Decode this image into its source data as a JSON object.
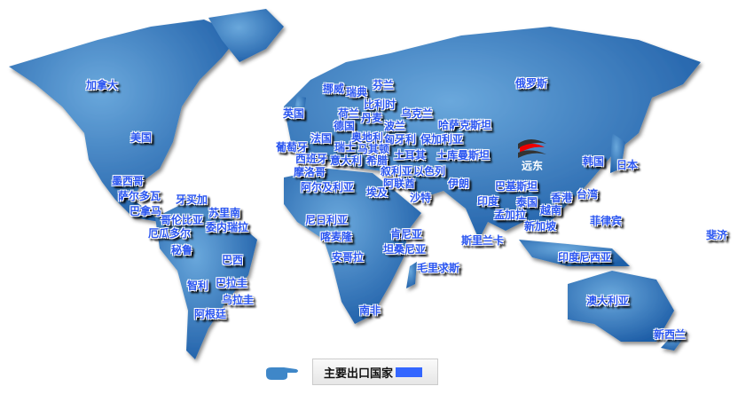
{
  "logo": {
    "text": "远东"
  },
  "legend": {
    "label": "主要出口国家",
    "swatch_color": "#3366ff",
    "pointer_icon": "hand-pointer-icon"
  },
  "colors": {
    "land": "#3d7fc4",
    "label": "#2a55f0"
  },
  "countries": [
    "加拿大",
    "美国",
    "墨西哥",
    "萨尔多瓦",
    "巴拿马",
    "牙买加",
    "苏里南",
    "哥伦比亚",
    "委内瑞拉",
    "厄瓜多尔",
    "秘鲁",
    "巴西",
    "智利",
    "巴拉圭",
    "乌拉圭",
    "阿根廷",
    "挪威",
    "瑞典",
    "芬兰",
    "比利时",
    "英国",
    "荷兰",
    "丹麦",
    "乌克兰",
    "德国",
    "波兰",
    "哈萨克斯坦",
    "法国",
    "奥地利",
    "匈牙利",
    "保加利亚",
    "葡萄牙",
    "瑞士",
    "马其顿",
    "西班牙",
    "意大利",
    "希腊",
    "土耳其",
    "土库曼斯坦",
    "摩洛哥",
    "叙利亚",
    "以色列",
    "阿尔及利亚",
    "阿联酋",
    "伊朗",
    "埃及",
    "沙特",
    "巴基斯坦",
    "印度",
    "泰国",
    "香港",
    "台湾",
    "孟加拉",
    "越南",
    "新加坡",
    "韩国",
    "日本",
    "菲律宾",
    "斐济",
    "斯里兰卡",
    "印度尼西亚",
    "尼日利亚",
    "喀麦隆",
    "肯尼亚",
    "坦桑尼亚",
    "安哥拉",
    "毛里求斯",
    "南非",
    "澳大利亚",
    "新西兰",
    "俄罗斯"
  ]
}
